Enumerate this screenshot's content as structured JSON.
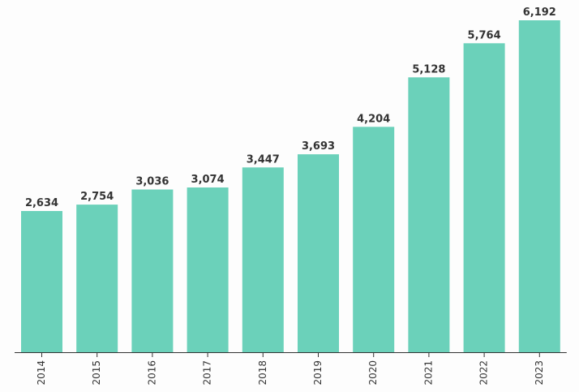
{
  "chart_data": {
    "type": "bar",
    "title": "",
    "xlabel": "",
    "ylabel": "",
    "categories": [
      "2014",
      "2015",
      "2016",
      "2017",
      "2018",
      "2019",
      "2020",
      "2021",
      "2022",
      "2023"
    ],
    "values": [
      2634,
      2754,
      3036,
      3074,
      3447,
      3693,
      4204,
      5128,
      5764,
      6192
    ],
    "value_labels": [
      "2,634",
      "2,754",
      "3,036",
      "3,074",
      "3,447",
      "3,693",
      "4,204",
      "5,128",
      "5,764",
      "6,192"
    ],
    "ylim": [
      0,
      6192
    ],
    "grid": false,
    "legend": "none",
    "bar_color": "#6bd1ba"
  }
}
